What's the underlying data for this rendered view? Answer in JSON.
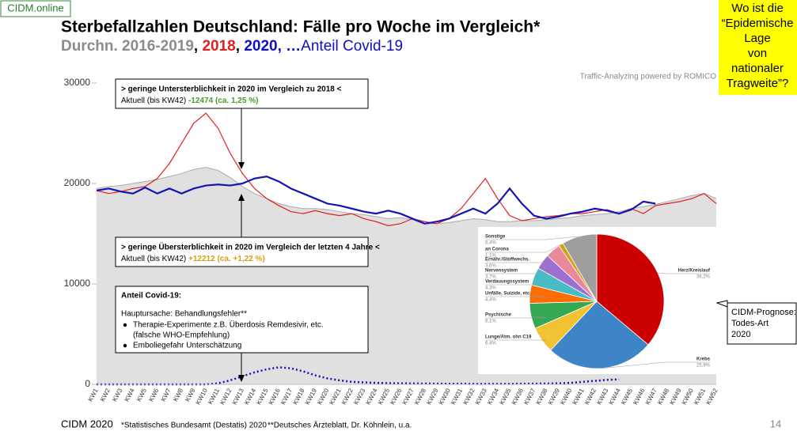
{
  "slide": {
    "brand": "CIDM.online",
    "question": [
      "Wo ist die",
      "“Epidemische",
      "Lage",
      "von",
      "nationaler",
      "Tragweite”?"
    ],
    "traffic": "Traffic-Analyzing powered by ROMICO",
    "box1": {
      "head": "> geringe Untersterblichkeit in 2020 im Vergleich zu 2018 <",
      "text": "Aktuell (bis KW42) ",
      "value": "-12474 (ca. 1,25 %)"
    },
    "box2": {
      "head": "> geringe Übersterblichkeit in 2020 im Vergleich der letzten 4 Jahre <",
      "text": "Aktuell (bis KW42) ",
      "value": "+12212 (ca. +1,22 %)"
    },
    "box3": {
      "head": "Anteil Covid-19:",
      "cause": "Hauptursache: Behandlungsfehler**",
      "bullets": [
        "Therapie-Experimente z.B. Überdosis Remdesivir, etc.",
        "(falsche WHO-Empfehlung)",
        "Emboliegefahr Unterschätzung"
      ]
    },
    "prognosis": [
      "CIDM-Prognose:",
      "Todes-Art",
      "2020"
    ],
    "footer": {
      "brand": "CIDM 2020",
      "source1": "*Statistisches Bundesamt (Destatis) 2020",
      "source2": "**Deutsches Ärzteblatt, Dr. Köhnlein, u.a.",
      "page": "14"
    }
  },
  "chart_data": [
    {
      "type": "line",
      "title": "Sterbefallzahlen Deutschland: Fälle pro Woche im Vergleich*",
      "subtitle": [
        {
          "text": "Durchn. 2016-2019",
          "color": "#8c8c8c",
          "bold": true
        },
        {
          "text": ", ",
          "color": "#000000",
          "bold": true
        },
        {
          "text": "2018",
          "color": "#e02020",
          "bold": true
        },
        {
          "text": ", ",
          "color": "#000000",
          "bold": true
        },
        {
          "text": "2020",
          "color": "#1010c0",
          "bold": true
        },
        {
          "text": ", …",
          "color": "#1010c0",
          "bold": true
        },
        {
          "text": "Anteil Covid-19",
          "color": "#1010c0",
          "bold": false
        }
      ],
      "categories": [
        "KW1",
        "KW2",
        "KW3",
        "KW4",
        "KW5",
        "KW6",
        "KW7",
        "KW8",
        "KW9",
        "KW10",
        "KW11",
        "KW12",
        "KW13",
        "KW14",
        "KW15",
        "KW16",
        "KW17",
        "KW18",
        "KW19",
        "KW20",
        "KW21",
        "KW22",
        "KW23",
        "KW24",
        "KW25",
        "KW26",
        "KW27",
        "KW28",
        "KW29",
        "KW30",
        "KW31",
        "KW32",
        "KW33",
        "KW34",
        "KW35",
        "KW36",
        "KW37",
        "KW38",
        "KW39",
        "KW40",
        "KW41",
        "KW42",
        "KW43",
        "KW44",
        "KW45",
        "KW46",
        "KW47",
        "KW48",
        "KW49",
        "KW50",
        "KW51",
        "KW52"
      ],
      "ylim": [
        0,
        30000
      ],
      "yticks": [
        0,
        10000,
        20000,
        30000
      ],
      "series": [
        {
          "style": "area",
          "color": "#aaaaaa",
          "values": [
            19500,
            19700,
            19800,
            20000,
            20200,
            20400,
            20700,
            21000,
            21400,
            21600,
            21300,
            20600,
            19700,
            19000,
            18500,
            18000,
            17700,
            17500,
            17500,
            17400,
            17200,
            17000,
            16900,
            16700,
            16500,
            16600,
            16400,
            16000,
            16000,
            16100,
            16300,
            16500,
            16400,
            16200,
            16200,
            16300,
            16300,
            16400,
            16500,
            16600,
            16800,
            16900,
            17000,
            17200,
            17500,
            17700,
            17900,
            18200,
            18500,
            18800,
            19000,
            18500
          ]
        },
        {
          "style": "line",
          "color": "#e02020",
          "values": [
            19300,
            19000,
            19200,
            19500,
            19700,
            20500,
            22000,
            24000,
            26000,
            27000,
            25500,
            23000,
            21000,
            19500,
            18500,
            17800,
            17200,
            17000,
            17300,
            17000,
            16800,
            17000,
            16500,
            16200,
            15800,
            16000,
            16500,
            16200,
            16000,
            16500,
            17500,
            19000,
            20500,
            18500,
            16800,
            16300,
            16500,
            16700,
            16800,
            17000,
            17000,
            17200,
            17400,
            17000,
            17500,
            17000,
            17800,
            18000,
            18200,
            18500,
            19000,
            18000
          ]
        },
        {
          "style": "line",
          "color": "#1414b4",
          "values": [
            19300,
            19500,
            19200,
            19000,
            19600,
            19000,
            19500,
            19000,
            19500,
            19800,
            19900,
            19800,
            20000,
            20500,
            20700,
            20200,
            19500,
            19000,
            18500,
            18000,
            17800,
            17500,
            17200,
            17000,
            17300,
            17000,
            16500,
            16000,
            16200,
            16500,
            17000,
            17500,
            17000,
            18000,
            19500,
            18000,
            16800,
            16500,
            16700,
            17000,
            17200,
            17500,
            17300,
            17000,
            17400,
            18200,
            18000,
            null,
            null,
            null,
            null,
            null
          ]
        },
        {
          "style": "dotted",
          "color": "#1414b4",
          "values": [
            0,
            0,
            0,
            0,
            0,
            0,
            0,
            0,
            0,
            0,
            100,
            400,
            800,
            1200,
            1500,
            1700,
            1600,
            1300,
            900,
            600,
            400,
            250,
            200,
            150,
            120,
            100,
            90,
            80,
            70,
            60,
            60,
            50,
            50,
            50,
            50,
            60,
            70,
            80,
            100,
            150,
            250,
            350,
            450,
            500,
            null,
            null,
            null,
            null,
            null,
            null,
            null,
            null
          ]
        }
      ]
    },
    {
      "type": "pie",
      "categories": [
        "Herz/Kreislauf",
        "Krebs",
        "Lunge/Atm. ohn C19",
        "Psychische",
        "Unfälle, Suizide, etc.",
        "Verdauungssystem",
        "Nervensystem",
        "Ernähr./Stoffwechs.",
        "an Corona",
        "Sonstige"
      ],
      "values": [
        36.2,
        25.9,
        6.4,
        6.1,
        4.4,
        4.3,
        3.7,
        3.6,
        1.1,
        8.4
      ],
      "value_labels": [
        "36,2%",
        "25,9%",
        "6,4%",
        "6,1%",
        "4,4%",
        "4,3%",
        "3,7%",
        "3,6%",
        "1,1%",
        "8,4%"
      ],
      "colors": [
        "#cc0000",
        "#3d85c6",
        "#f1c232",
        "#34a853",
        "#ff6d01",
        "#46bdc6",
        "#9c6fd0",
        "#e88a9a",
        "#d4a017",
        "#9e9e9e"
      ]
    }
  ]
}
